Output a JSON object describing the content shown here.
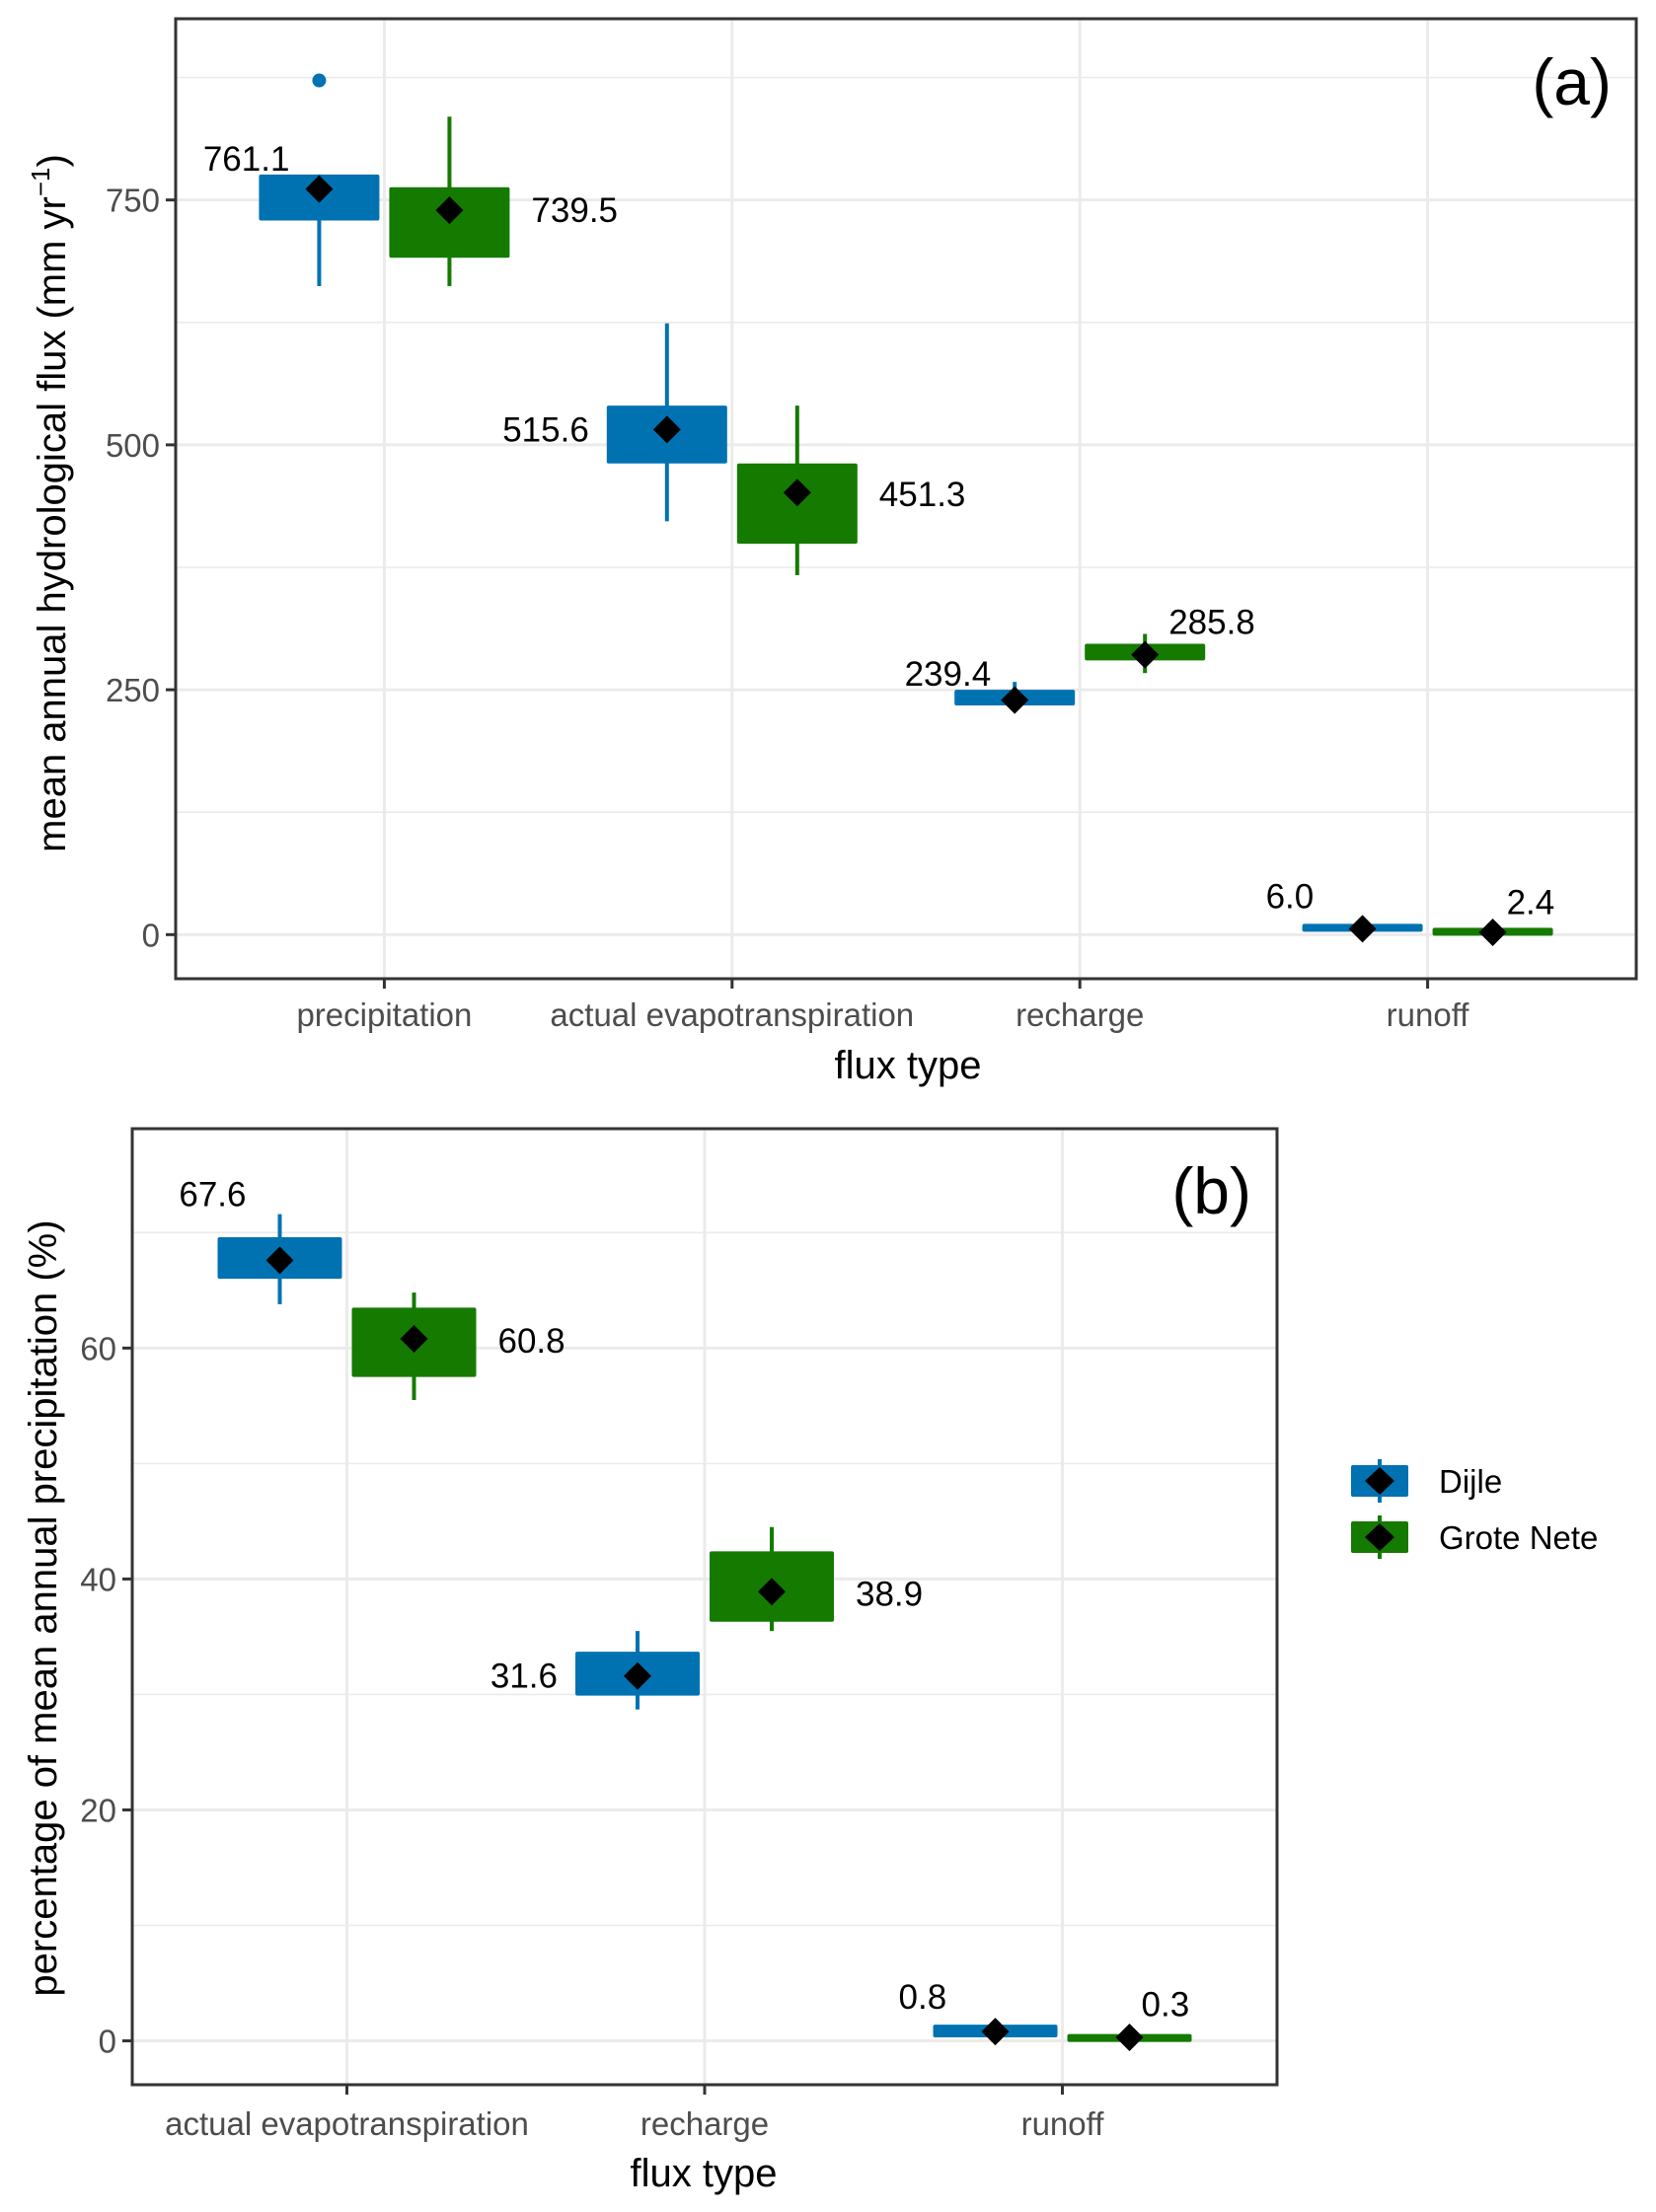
{
  "chart_data": [
    {
      "id": "a",
      "type": "boxplot",
      "panel_tag": "(a)",
      "xlabel": "flux type",
      "ylabel": "mean annual hydrological flux (mm yr",
      "ylabel_superscript": "−1",
      "ylabel_close": ")",
      "ylim": [
        -45,
        935
      ],
      "yticks": [
        0,
        250,
        500,
        750
      ],
      "yticks_minor": [
        125,
        375,
        625,
        875
      ],
      "grid": true,
      "categories": [
        "precipitation",
        "actual evapotranspiration",
        "recharge",
        "runoff"
      ],
      "series": [
        {
          "name": "Dijle",
          "color": "#0072B2",
          "boxes": [
            {
              "category": "precipitation",
              "whisker_low": 662,
              "q1": 729,
              "q3": 776,
              "whisker_high": 776,
              "mean": 761.1,
              "outliers": [
                872
              ],
              "label": "761.1"
            },
            {
              "category": "actual evapotranspiration",
              "whisker_low": 422,
              "q1": 481,
              "q3": 540,
              "whisker_high": 624,
              "mean": 515.6,
              "outliers": [],
              "label": "515.6"
            },
            {
              "category": "recharge",
              "whisker_low": 233,
              "q1": 234,
              "q3": 250,
              "whisker_high": 258,
              "mean": 239.4,
              "outliers": [],
              "label": "239.4"
            },
            {
              "category": "runoff",
              "whisker_low": 3,
              "q1": 3,
              "q3": 11,
              "whisker_high": 11,
              "mean": 6.0,
              "outliers": [],
              "label": "6.0"
            }
          ]
        },
        {
          "name": "Grote Nete",
          "color": "#157A00",
          "boxes": [
            {
              "category": "precipitation",
              "whisker_low": 662,
              "q1": 691,
              "q3": 763,
              "whisker_high": 835,
              "mean": 739.5,
              "outliers": [],
              "label": "739.5"
            },
            {
              "category": "actual evapotranspiration",
              "whisker_low": 367,
              "q1": 399,
              "q3": 481,
              "whisker_high": 540,
              "mean": 451.3,
              "outliers": [],
              "label": "451.3"
            },
            {
              "category": "recharge",
              "whisker_low": 267,
              "q1": 280,
              "q3": 297,
              "whisker_high": 307,
              "mean": 285.8,
              "outliers": [],
              "label": "285.8"
            },
            {
              "category": "runoff",
              "whisker_low": 0,
              "q1": 0,
              "q3": 6,
              "whisker_high": 6,
              "mean": 2.4,
              "outliers": [],
              "label": "2.4"
            }
          ]
        }
      ]
    },
    {
      "id": "b",
      "type": "boxplot",
      "panel_tag": "(b)",
      "xlabel": "flux type",
      "ylabel": "percentage of mean annual precipitation (%)",
      "ylim": [
        -3.8,
        79.0
      ],
      "yticks": [
        0,
        20,
        40,
        60
      ],
      "yticks_minor": [
        10,
        30,
        50,
        70
      ],
      "grid": true,
      "categories": [
        "actual evapotranspiration",
        "recharge",
        "runoff"
      ],
      "series": [
        {
          "name": "Dijle",
          "color": "#0072B2",
          "boxes": [
            {
              "category": "actual evapotranspiration",
              "whisker_low": 63.8,
              "q1": 66.0,
              "q3": 69.6,
              "whisker_high": 71.6,
              "mean": 67.6,
              "outliers": [],
              "label": "67.6"
            },
            {
              "category": "recharge",
              "whisker_low": 28.7,
              "q1": 29.9,
              "q3": 33.7,
              "whisker_high": 35.5,
              "mean": 31.6,
              "outliers": [],
              "label": "31.6"
            },
            {
              "category": "runoff",
              "whisker_low": 0.3,
              "q1": 0.3,
              "q3": 1.4,
              "whisker_high": 1.4,
              "mean": 0.8,
              "outliers": [],
              "label": "0.8"
            }
          ]
        },
        {
          "name": "Grote Nete",
          "color": "#157A00",
          "boxes": [
            {
              "category": "actual evapotranspiration",
              "whisker_low": 55.5,
              "q1": 57.5,
              "q3": 63.5,
              "whisker_high": 64.8,
              "mean": 60.8,
              "outliers": [],
              "label": "60.8"
            },
            {
              "category": "recharge",
              "whisker_low": 35.5,
              "q1": 36.3,
              "q3": 42.4,
              "whisker_high": 44.5,
              "mean": 38.9,
              "outliers": [],
              "label": "38.9"
            },
            {
              "category": "runoff",
              "whisker_low": 0.0,
              "q1": 0.0,
              "q3": 0.5,
              "whisker_high": 0.5,
              "mean": 0.3,
              "outliers": [],
              "label": "0.3"
            }
          ]
        }
      ]
    }
  ],
  "legend": {
    "placement": "right of panel (b)",
    "entries": [
      {
        "name": "Dijle",
        "color": "#0072B2"
      },
      {
        "name": "Grote Nete",
        "color": "#157A00"
      }
    ],
    "mean_marker": "black diamond"
  }
}
